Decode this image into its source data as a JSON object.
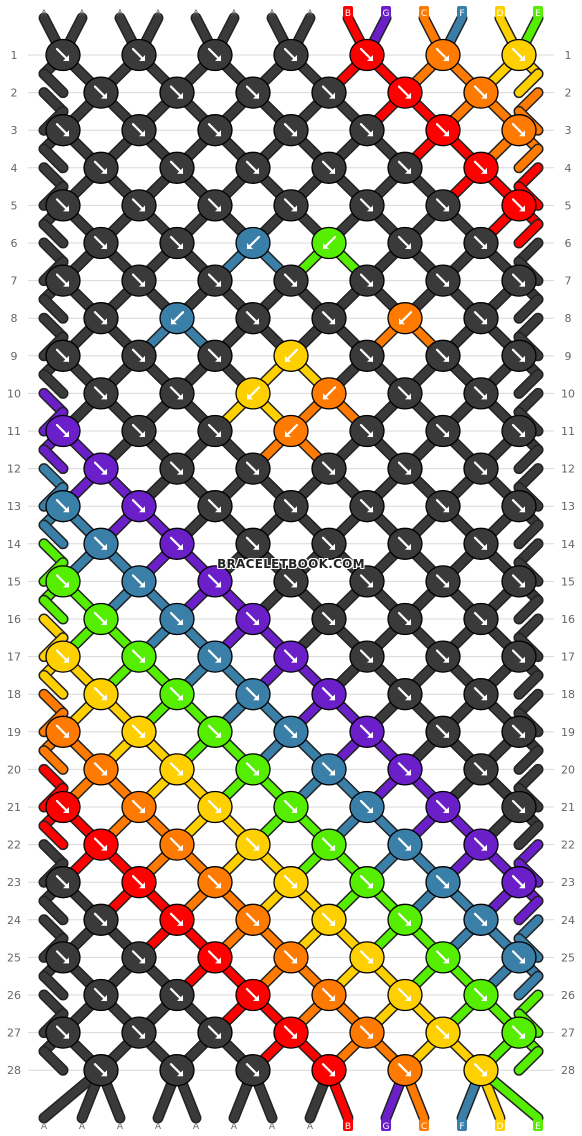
{
  "watermark": "BRACELETBOOK.COM",
  "top_labels": [
    "A",
    "A",
    "A",
    "A",
    "A",
    "A",
    "A",
    "A",
    "B",
    "G",
    "C",
    "F",
    "D",
    "E"
  ],
  "bottom_labels": [
    "A",
    "A",
    "A",
    "A",
    "A",
    "A",
    "A",
    "A",
    "B",
    "G",
    "C",
    "F",
    "D",
    "E"
  ],
  "row_numbers": [
    "1",
    "2",
    "3",
    "4",
    "5",
    "6",
    "7",
    "8",
    "9",
    "10",
    "11",
    "12",
    "13",
    "14",
    "15",
    "16",
    "17",
    "18",
    "19",
    "20",
    "21",
    "22",
    "23",
    "24",
    "25",
    "26",
    "27",
    "28"
  ],
  "colors": {
    "A": "#3a3a3a",
    "B": "#ff0000",
    "G": "#6a1fc8",
    "C": "#ff7a00",
    "F": "#3a7fa8",
    "D": "#ffd000",
    "E": "#55ee00"
  },
  "knot_icon_names": {
    "forward": "forward-knot-arrow-icon",
    "backward": "backward-knot-arrow-icon"
  }
}
